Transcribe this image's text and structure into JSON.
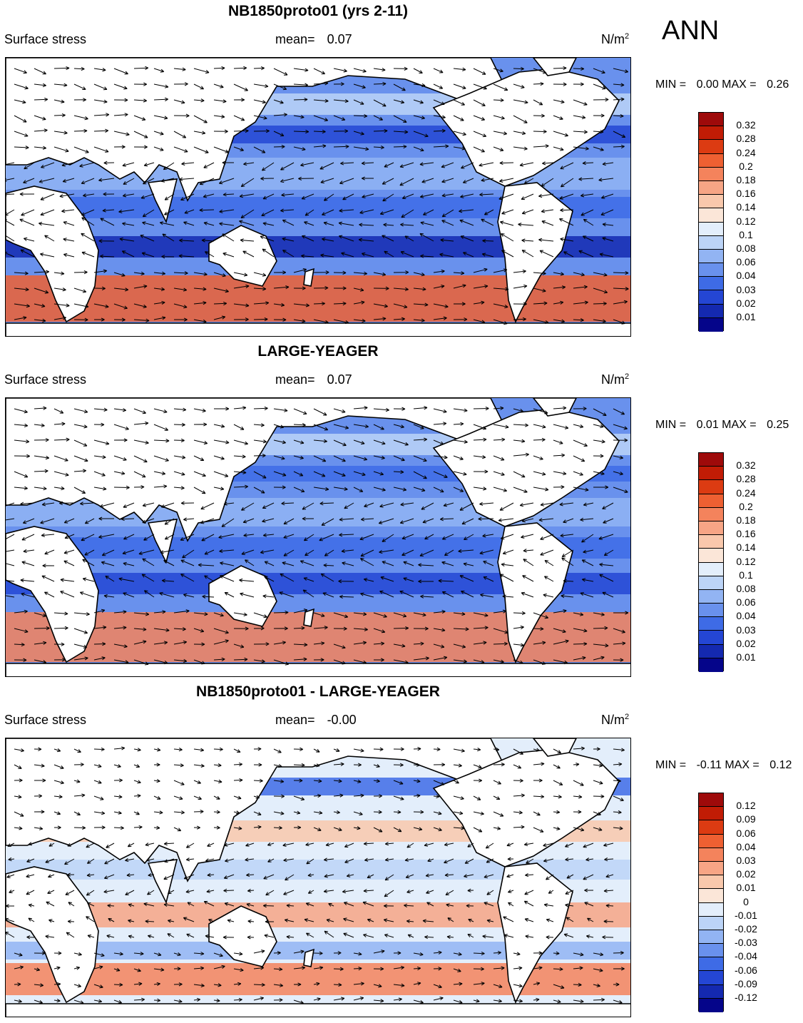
{
  "season": "ANN",
  "panels": [
    {
      "title": "NB1850proto01 (yrs 2-11)",
      "variable": "Surface stress",
      "mean_label": "mean=",
      "mean_value": "0.07",
      "units_base": "N/m",
      "units_sup": "2",
      "min_label": "MIN =",
      "min_value": "0.00",
      "max_label": "MAX =",
      "max_value": "0.26",
      "colorbar": {
        "levels": [
          "0.32",
          "0.28",
          "0.24",
          "0.2",
          "0.18",
          "0.16",
          "0.14",
          "0.12",
          "0.1",
          "0.08",
          "0.06",
          "0.04",
          "0.03",
          "0.02",
          "0.01"
        ],
        "colors": [
          "#9e0a0a",
          "#c11c05",
          "#dc3b12",
          "#ee6032",
          "#f4835c",
          "#f7a585",
          "#f9c8ac",
          "#fbe6d8",
          "#e3eefb",
          "#bcd4f7",
          "#92b4f3",
          "#6991ed",
          "#3e6be6",
          "#2446d4",
          "#1429b0",
          "#05058a"
        ]
      }
    },
    {
      "title": "LARGE-YEAGER",
      "variable": "Surface stress",
      "mean_label": "mean=",
      "mean_value": "0.07",
      "units_base": "N/m",
      "units_sup": "2",
      "min_label": "MIN =",
      "min_value": "0.01",
      "max_label": "MAX =",
      "max_value": "0.25",
      "colorbar": {
        "levels": [
          "0.32",
          "0.28",
          "0.24",
          "0.2",
          "0.18",
          "0.16",
          "0.14",
          "0.12",
          "0.1",
          "0.08",
          "0.06",
          "0.04",
          "0.03",
          "0.02",
          "0.01"
        ],
        "colors": [
          "#9e0a0a",
          "#c11c05",
          "#dc3b12",
          "#ee6032",
          "#f4835c",
          "#f7a585",
          "#f9c8ac",
          "#fbe6d8",
          "#e3eefb",
          "#bcd4f7",
          "#92b4f3",
          "#6991ed",
          "#3e6be6",
          "#2446d4",
          "#1429b0",
          "#05058a"
        ]
      }
    },
    {
      "title": "NB1850proto01 - LARGE-YEAGER",
      "variable": "Surface stress",
      "mean_label": "mean=",
      "mean_value": "-0.00",
      "units_base": "N/m",
      "units_sup": "2",
      "min_label": "MIN =",
      "min_value": "-0.11",
      "max_label": "MAX =",
      "max_value": "0.12",
      "colorbar": {
        "levels": [
          "0.12",
          "0.09",
          "0.06",
          "0.04",
          "0.03",
          "0.02",
          "0.01",
          "0",
          "-0.01",
          "-0.02",
          "-0.03",
          "-0.04",
          "-0.06",
          "-0.09",
          "-0.12"
        ],
        "colors": [
          "#9e0a0a",
          "#c11c05",
          "#dc3b12",
          "#ee6032",
          "#f4835c",
          "#f7a585",
          "#f9c8ac",
          "#fbe6d8",
          "#e3eefb",
          "#bcd4f7",
          "#92b4f3",
          "#6991ed",
          "#3e6be6",
          "#2446d4",
          "#1429b0",
          "#05058a"
        ]
      }
    }
  ]
}
